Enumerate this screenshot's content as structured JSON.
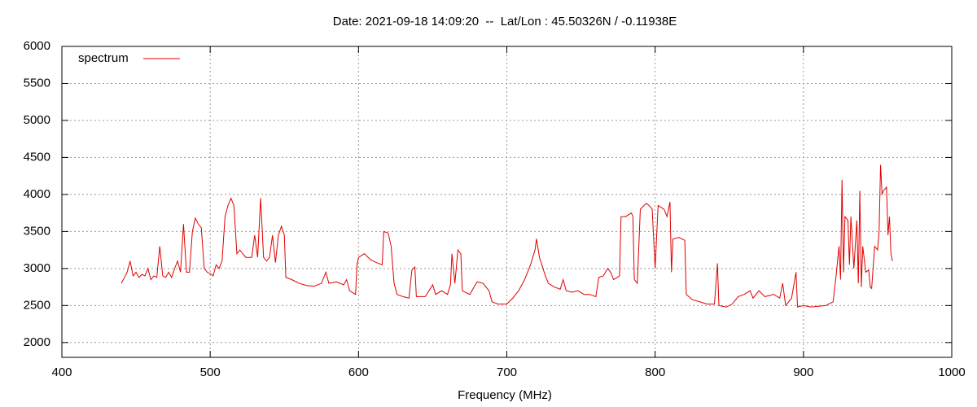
{
  "chart_data": {
    "type": "line",
    "title": "Date: 2021-09-18 14:09:20  --  Lat/Lon : 45.50326N / -0.11938E",
    "x_label": "Frequency (MHz)",
    "xlim": [
      400,
      1000
    ],
    "xticks": [
      400,
      500,
      600,
      700,
      800,
      900,
      1000
    ],
    "ylim": [
      1800,
      6000
    ],
    "yticks": [
      2000,
      2500,
      3000,
      3500,
      4000,
      4500,
      5000,
      5500,
      6000
    ],
    "grid": true,
    "legend": "top-left",
    "x": [
      440,
      442,
      444,
      446,
      448,
      450,
      452,
      454,
      456,
      458,
      460,
      462,
      464,
      466,
      468,
      470,
      472,
      474,
      476,
      478,
      480,
      482,
      484,
      486,
      488,
      490,
      492,
      494,
      496,
      498,
      500,
      502,
      504,
      506,
      508,
      510,
      512,
      514,
      516,
      518,
      520,
      524,
      528,
      530,
      532,
      534,
      536,
      538,
      540,
      542,
      544,
      546,
      548,
      550,
      551,
      555,
      560,
      565,
      570,
      575,
      578,
      580,
      585,
      590,
      592,
      594,
      598,
      599,
      600,
      604,
      608,
      612,
      616,
      617,
      620,
      622,
      624,
      626,
      630,
      634,
      636,
      638,
      639,
      645,
      650,
      652,
      656,
      660,
      662,
      663,
      665,
      667,
      669,
      670,
      675,
      680,
      684,
      688,
      690,
      694,
      700,
      704,
      708,
      712,
      716,
      719,
      720,
      722,
      726,
      728,
      732,
      736,
      738,
      740,
      744,
      748,
      752,
      756,
      760,
      762,
      765,
      768,
      770,
      772,
      776,
      777,
      780,
      784,
      785,
      786,
      788,
      790,
      794,
      796,
      798,
      800,
      802,
      806,
      808,
      810,
      811,
      812,
      816,
      820,
      821,
      825,
      830,
      835,
      840,
      842,
      843,
      848,
      852,
      856,
      860,
      864,
      866,
      870,
      874,
      880,
      884,
      886,
      888,
      892,
      895,
      896,
      900,
      905,
      910,
      915,
      920,
      922,
      924,
      925,
      926,
      927,
      928,
      930,
      931,
      932,
      934,
      936,
      937,
      938,
      939,
      940,
      942,
      944,
      945,
      946,
      948,
      950,
      951,
      952,
      953,
      954,
      956,
      957,
      958,
      959,
      960
    ],
    "series": [
      {
        "name": "spectrum",
        "color": "#e00000",
        "values": [
          2800,
          2870,
          2950,
          3100,
          2900,
          2950,
          2880,
          2920,
          2900,
          3000,
          2850,
          2900,
          2880,
          3300,
          2900,
          2880,
          2950,
          2880,
          3000,
          3100,
          2950,
          3600,
          2950,
          2950,
          3500,
          3680,
          3600,
          3550,
          3000,
          2950,
          2930,
          2900,
          3050,
          3000,
          3100,
          3700,
          3850,
          3950,
          3850,
          3200,
          3250,
          3150,
          3150,
          3450,
          3150,
          3950,
          3150,
          3100,
          3150,
          3450,
          3080,
          3450,
          3570,
          3450,
          2880,
          2850,
          2800,
          2770,
          2760,
          2800,
          2950,
          2800,
          2820,
          2780,
          2850,
          2700,
          2650,
          3050,
          3150,
          3200,
          3120,
          3080,
          3050,
          3500,
          3480,
          3300,
          2800,
          2650,
          2620,
          2600,
          2980,
          3020,
          2620,
          2620,
          2780,
          2650,
          2700,
          2650,
          2780,
          3200,
          2800,
          3250,
          3200,
          2700,
          2650,
          2820,
          2800,
          2700,
          2550,
          2520,
          2520,
          2600,
          2700,
          2850,
          3050,
          3250,
          3400,
          3150,
          2900,
          2800,
          2750,
          2720,
          2850,
          2700,
          2680,
          2700,
          2650,
          2650,
          2620,
          2880,
          2900,
          3000,
          2950,
          2850,
          2900,
          3700,
          3700,
          3750,
          3700,
          2850,
          2800,
          3800,
          3880,
          3850,
          3800,
          3000,
          3850,
          3800,
          3700,
          3900,
          2950,
          3400,
          3420,
          3380,
          2650,
          2580,
          2550,
          2520,
          2520,
          3070,
          2500,
          2480,
          2520,
          2620,
          2650,
          2700,
          2600,
          2700,
          2620,
          2650,
          2600,
          2800,
          2500,
          2600,
          2950,
          2480,
          2500,
          2480,
          2490,
          2500,
          2550,
          2900,
          3300,
          2850,
          4200,
          2950,
          3700,
          3650,
          3050,
          3700,
          3000,
          3650,
          2800,
          4050,
          2750,
          3300,
          2950,
          2980,
          2750,
          2730,
          3300,
          3250,
          3500,
          4400,
          4000,
          4050,
          4100,
          3450,
          3700,
          3200,
          3100
        ]
      }
    ]
  }
}
